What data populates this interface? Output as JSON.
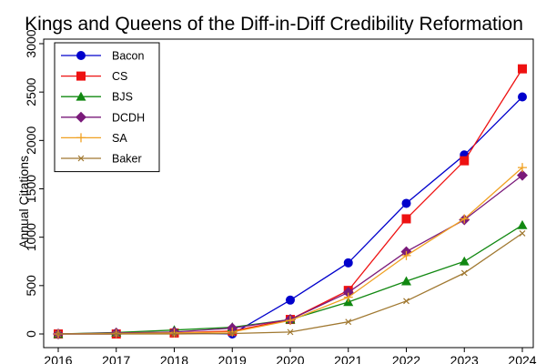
{
  "chart_data": {
    "type": "line",
    "title": "Kings and Queens of the Diff-in-Diff Credibility Reformation",
    "xlabel": "",
    "ylabel": "Annual Citations",
    "x": [
      2016,
      2017,
      2018,
      2019,
      2020,
      2021,
      2022,
      2023,
      2024
    ],
    "xlim": [
      2016,
      2024
    ],
    "ylim": [
      0,
      3000
    ],
    "yticks": [
      0,
      500,
      1000,
      1500,
      2000,
      2500,
      3000
    ],
    "grid": false,
    "legend_position": "top-left",
    "series": [
      {
        "name": "Bacon",
        "color": "#0000cc",
        "marker": "circle",
        "values": [
          0,
          0,
          10,
          0,
          350,
          735,
          1350,
          1850,
          2450
        ]
      },
      {
        "name": "CS",
        "color": "#ee1111",
        "marker": "square",
        "values": [
          0,
          0,
          10,
          30,
          150,
          450,
          1190,
          1790,
          2740
        ]
      },
      {
        "name": "BJS",
        "color": "#118811",
        "marker": "triangle",
        "values": [
          0,
          15,
          40,
          70,
          150,
          330,
          545,
          750,
          1125
        ]
      },
      {
        "name": "DCDH",
        "color": "#7a1a7a",
        "marker": "diamond",
        "values": [
          0,
          10,
          20,
          60,
          150,
          430,
          850,
          1180,
          1640
        ]
      },
      {
        "name": "SA",
        "color": "#f0a020",
        "marker": "plus",
        "values": [
          0,
          5,
          10,
          20,
          140,
          380,
          810,
          1190,
          1720
        ]
      },
      {
        "name": "Baker",
        "color": "#a07830",
        "marker": "x",
        "values": [
          0,
          0,
          0,
          5,
          20,
          125,
          340,
          630,
          1040
        ]
      }
    ]
  }
}
